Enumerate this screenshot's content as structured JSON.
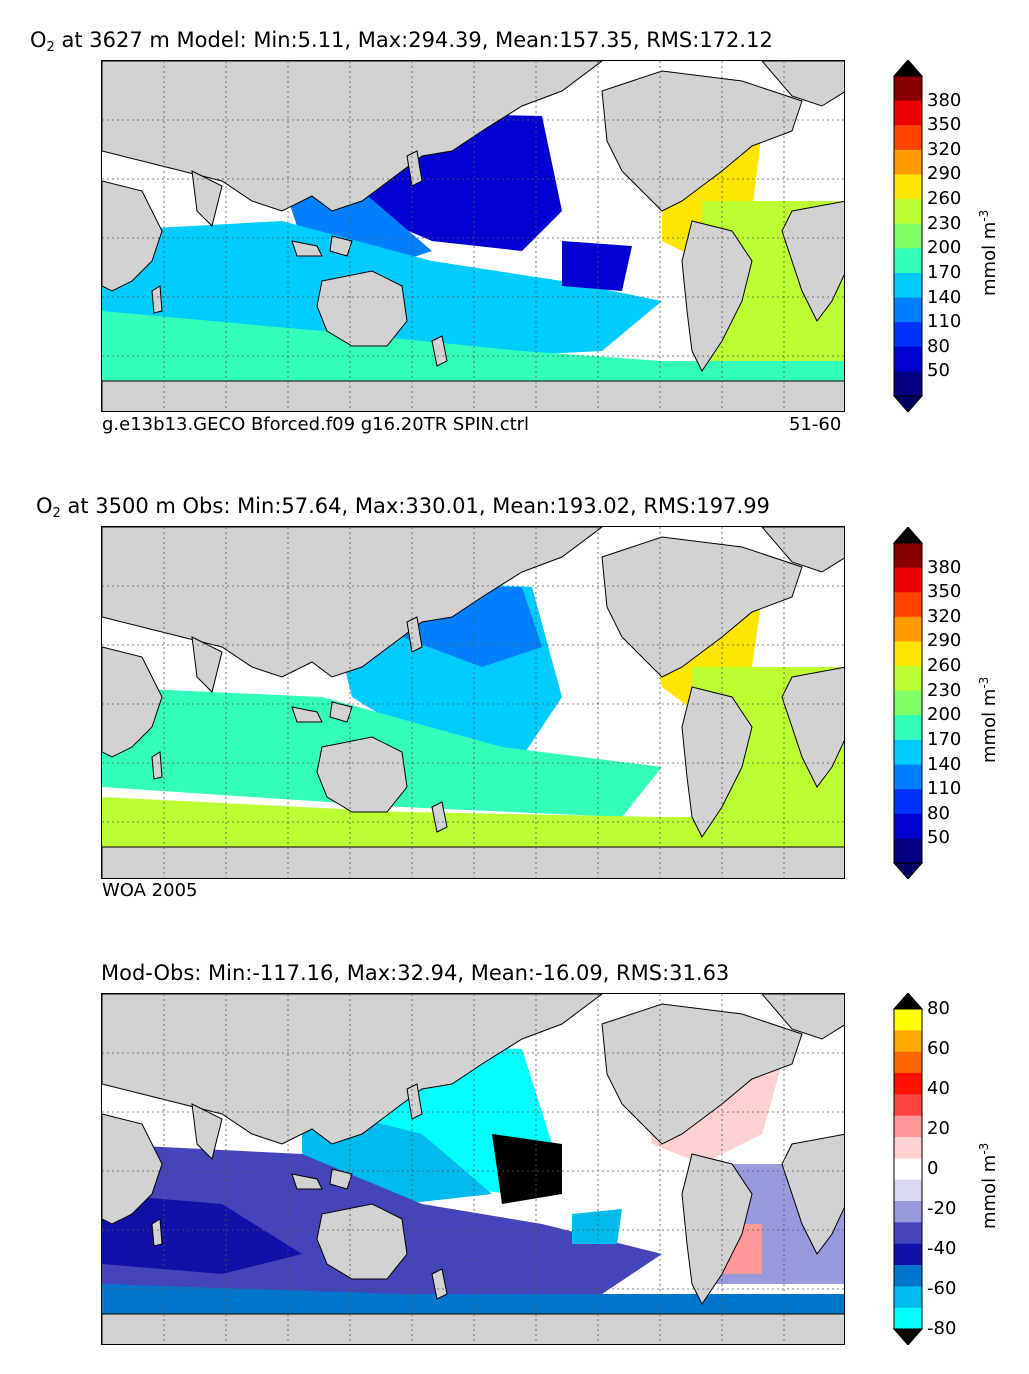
{
  "panels": [
    {
      "title_prefix": "O",
      "title_sub": "2",
      "title_rest": " at 3627 m Model: Min:5.11, Max:294.39, Mean:157.35, RMS:172.12",
      "caption_left": "g.e13b13.GECO Bforced.f09 g16.20TR SPIN.ctrl",
      "caption_right": "51-60",
      "colorbar": {
        "unit": "mmol m",
        "unit_sup": "-3",
        "ticks": [
          "380",
          "350",
          "320",
          "290",
          "260",
          "230",
          "200",
          "170",
          "140",
          "110",
          "80",
          "50"
        ],
        "colors": [
          "#000080",
          "#0000d0",
          "#0033ff",
          "#0080ff",
          "#00ccff",
          "#33ffbb",
          "#80ff66",
          "#bbff33",
          "#ffe600",
          "#ff9900",
          "#ff4400",
          "#ee0000",
          "#880000"
        ],
        "under_color": "#000060",
        "over_color": "#000000"
      }
    },
    {
      "title_prefix": "O",
      "title_sub": "2",
      "title_rest": " at 3500 m Obs: Min:57.64, Max:330.01, Mean:193.02, RMS:197.99",
      "caption_left": "WOA 2005",
      "caption_right": "",
      "colorbar": {
        "unit": "mmol m",
        "unit_sup": "-3",
        "ticks": [
          "380",
          "350",
          "320",
          "290",
          "260",
          "230",
          "200",
          "170",
          "140",
          "110",
          "80",
          "50"
        ],
        "colors": [
          "#000080",
          "#0000d0",
          "#0033ff",
          "#0080ff",
          "#00ccff",
          "#33ffbb",
          "#80ff66",
          "#bbff33",
          "#ffe600",
          "#ff9900",
          "#ff4400",
          "#ee0000",
          "#880000"
        ],
        "under_color": "#000060",
        "over_color": "#000000"
      }
    },
    {
      "title_prefix": "Mod-Obs: Min:-117.16, Max:32.94, Mean:-16.09, RMS:31.63",
      "title_sub": "",
      "title_rest": "",
      "caption_left": "",
      "caption_right": "",
      "colorbar": {
        "unit": "mmol m",
        "unit_sup": "-3",
        "ticks": [
          "80",
          "60",
          "40",
          "20",
          "0",
          "-20",
          "-40",
          "-60",
          "-80"
        ],
        "colors": [
          "#00ffff",
          "#00bbee",
          "#0077cc",
          "#1111aa",
          "#4444bb",
          "#9999dd",
          "#d8d8f0",
          "#ffffff",
          "#ffd0d0",
          "#ff9999",
          "#ff4444",
          "#ff1100",
          "#ff6600",
          "#ffaa00",
          "#ffff00"
        ],
        "under_color": "#000000",
        "over_color": "#000000"
      }
    }
  ],
  "map_colors": {
    "land": "#d2d2d2",
    "no_data": "#ffffff",
    "grid": "#555555"
  }
}
